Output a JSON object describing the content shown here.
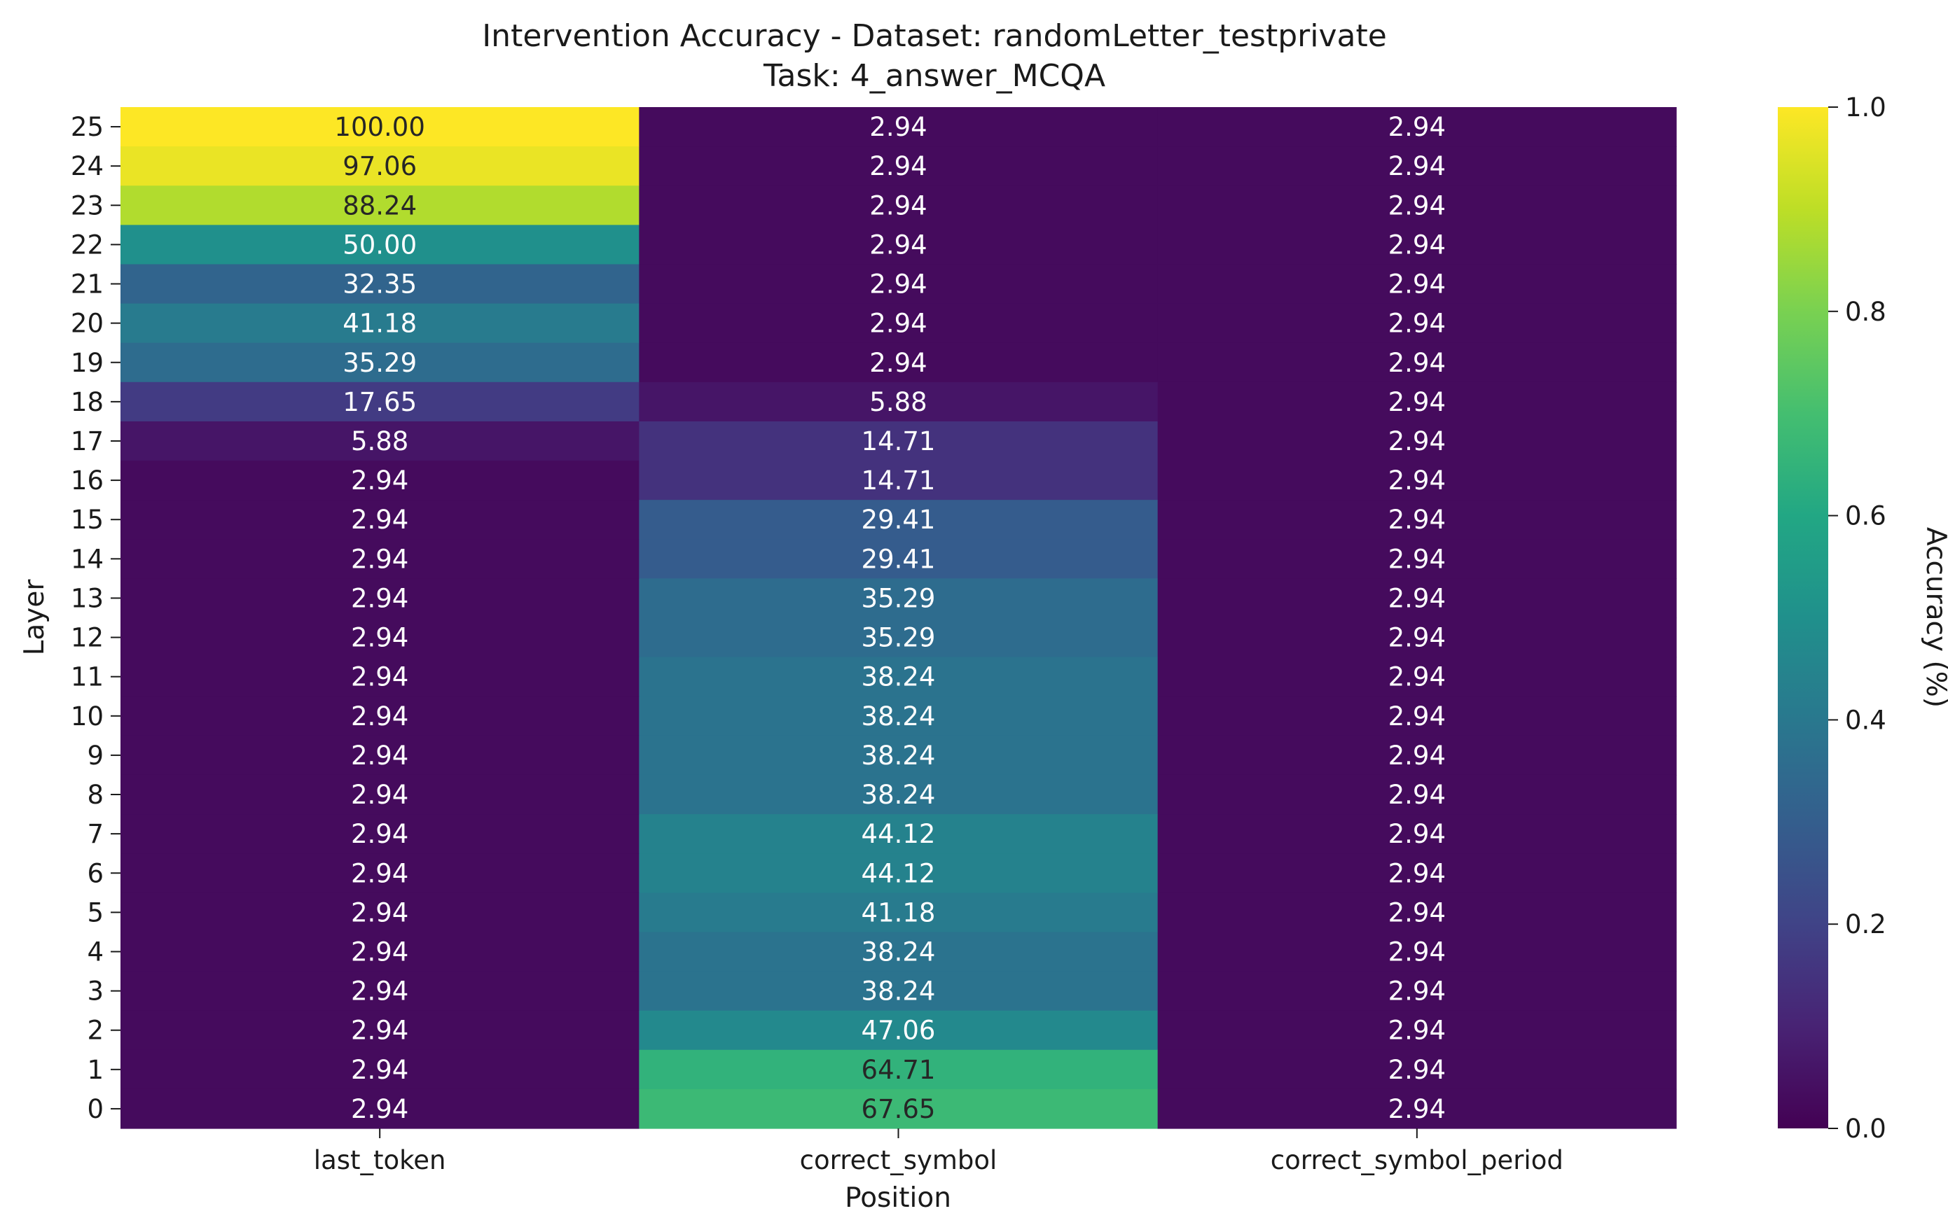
{
  "chart_data": {
    "type": "heatmap",
    "title": "Intervention Accuracy - Dataset: randomLetter_testprivate",
    "subtitle": "Task: 4_answer_MCQA",
    "xlabel": "Position",
    "ylabel": "Layer",
    "colorbar_label": "Accuracy (%)",
    "colormap": "viridis",
    "colorbar_range": [
      0.0,
      1.0
    ],
    "colorbar_ticks": [
      "0.0",
      "0.2",
      "0.4",
      "0.6",
      "0.8",
      "1.0"
    ],
    "columns": [
      "last_token",
      "correct_symbol",
      "correct_symbol_period"
    ],
    "rows": [
      "25",
      "24",
      "23",
      "22",
      "21",
      "20",
      "19",
      "18",
      "17",
      "16",
      "15",
      "14",
      "13",
      "12",
      "11",
      "10",
      "9",
      "8",
      "7",
      "6",
      "5",
      "4",
      "3",
      "2",
      "1",
      "0"
    ],
    "values": [
      [
        100.0,
        2.94,
        2.94
      ],
      [
        97.06,
        2.94,
        2.94
      ],
      [
        88.24,
        2.94,
        2.94
      ],
      [
        50.0,
        2.94,
        2.94
      ],
      [
        32.35,
        2.94,
        2.94
      ],
      [
        41.18,
        2.94,
        2.94
      ],
      [
        35.29,
        2.94,
        2.94
      ],
      [
        17.65,
        5.88,
        2.94
      ],
      [
        5.88,
        14.71,
        2.94
      ],
      [
        2.94,
        14.71,
        2.94
      ],
      [
        2.94,
        29.41,
        2.94
      ],
      [
        2.94,
        29.41,
        2.94
      ],
      [
        2.94,
        35.29,
        2.94
      ],
      [
        2.94,
        35.29,
        2.94
      ],
      [
        2.94,
        38.24,
        2.94
      ],
      [
        2.94,
        38.24,
        2.94
      ],
      [
        2.94,
        38.24,
        2.94
      ],
      [
        2.94,
        38.24,
        2.94
      ],
      [
        2.94,
        44.12,
        2.94
      ],
      [
        2.94,
        44.12,
        2.94
      ],
      [
        2.94,
        41.18,
        2.94
      ],
      [
        2.94,
        38.24,
        2.94
      ],
      [
        2.94,
        38.24,
        2.94
      ],
      [
        2.94,
        47.06,
        2.94
      ],
      [
        2.94,
        64.71,
        2.94
      ],
      [
        2.94,
        67.65,
        2.94
      ]
    ],
    "cell_labels": [
      [
        "100.00",
        "2.94",
        "2.94"
      ],
      [
        "97.06",
        "2.94",
        "2.94"
      ],
      [
        "88.24",
        "2.94",
        "2.94"
      ],
      [
        "50.00",
        "2.94",
        "2.94"
      ],
      [
        "32.35",
        "2.94",
        "2.94"
      ],
      [
        "41.18",
        "2.94",
        "2.94"
      ],
      [
        "35.29",
        "2.94",
        "2.94"
      ],
      [
        "17.65",
        "5.88",
        "2.94"
      ],
      [
        "5.88",
        "14.71",
        "2.94"
      ],
      [
        "2.94",
        "14.71",
        "2.94"
      ],
      [
        "2.94",
        "29.41",
        "2.94"
      ],
      [
        "2.94",
        "29.41",
        "2.94"
      ],
      [
        "2.94",
        "35.29",
        "2.94"
      ],
      [
        "2.94",
        "35.29",
        "2.94"
      ],
      [
        "2.94",
        "38.24",
        "2.94"
      ],
      [
        "2.94",
        "38.24",
        "2.94"
      ],
      [
        "2.94",
        "38.24",
        "2.94"
      ],
      [
        "2.94",
        "38.24",
        "2.94"
      ],
      [
        "2.94",
        "44.12",
        "2.94"
      ],
      [
        "2.94",
        "44.12",
        "2.94"
      ],
      [
        "2.94",
        "41.18",
        "2.94"
      ],
      [
        "2.94",
        "38.24",
        "2.94"
      ],
      [
        "2.94",
        "38.24",
        "2.94"
      ],
      [
        "2.94",
        "47.06",
        "2.94"
      ],
      [
        "2.94",
        "64.71",
        "2.94"
      ],
      [
        "2.94",
        "67.65",
        "2.94"
      ]
    ],
    "color_scale_max": 100,
    "grid": false
  }
}
